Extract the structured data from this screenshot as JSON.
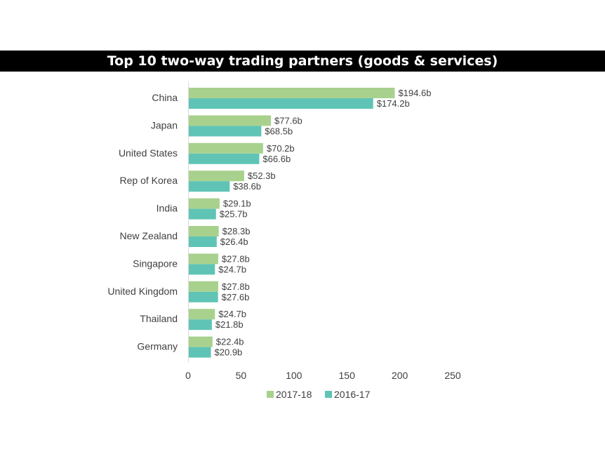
{
  "chart_data": {
    "type": "bar",
    "orientation": "horizontal",
    "title": "Top 10 two-way trading partners (goods & services)",
    "categories": [
      "China",
      "Japan",
      "United States",
      "Rep of Korea",
      "India",
      "New Zealand",
      "Singapore",
      "United Kingdom",
      "Thailand",
      "Germany"
    ],
    "series": [
      {
        "name": "2017-18",
        "color": "#a9d18e",
        "values": [
          194.6,
          77.6,
          70.2,
          52.3,
          29.1,
          28.3,
          27.8,
          27.8,
          24.7,
          22.4
        ],
        "labels": [
          "$194.6b",
          "$77.6b",
          "$70.2b",
          "$52.3b",
          "$29.1b",
          "$28.3b",
          "$27.8b",
          "$27.8b",
          "$24.7b",
          "$22.4b"
        ]
      },
      {
        "name": "2016-17",
        "color": "#5fc4b6",
        "values": [
          174.2,
          68.5,
          66.6,
          38.6,
          25.7,
          26.4,
          24.7,
          27.6,
          21.8,
          20.9
        ],
        "labels": [
          "$174.2b",
          "$68.5b",
          "$66.6b",
          "$38.6b",
          "$25.7b",
          "$26.4b",
          "$24.7b",
          "$27.6b",
          "$21.8b",
          "$20.9b"
        ]
      }
    ],
    "xlim": [
      0,
      250
    ],
    "xticks": [
      "0",
      "50",
      "100",
      "150",
      "200",
      "250"
    ],
    "grid": false,
    "legend_position": "bottom"
  }
}
